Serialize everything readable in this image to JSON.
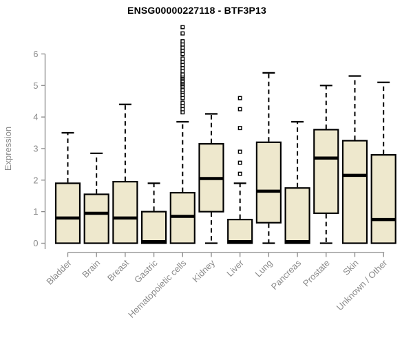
{
  "title": "ENSG00000227118 - BTF3P13",
  "chart_data": {
    "type": "boxplot",
    "title": "ENSG00000227118 - BTF3P13",
    "xlabel": "",
    "ylabel": "Expression",
    "ylim": [
      0,
      6
    ],
    "yticks": [
      0,
      1,
      2,
      3,
      4,
      5,
      6
    ],
    "grid": false,
    "legend": false,
    "categories": [
      "Bladder",
      "Brain",
      "Breast",
      "Gastric",
      "Hematopoietic cells",
      "Kidney",
      "Liver",
      "Lung",
      "Pancreas",
      "Prostate",
      "Skin",
      "Unknown / Other"
    ],
    "boxes": [
      {
        "category": "Bladder",
        "low": 0,
        "q1": 0,
        "median": 0.8,
        "q3": 1.9,
        "high": 3.5,
        "outliers": []
      },
      {
        "category": "Brain",
        "low": 0,
        "q1": 0,
        "median": 0.95,
        "q3": 1.55,
        "high": 2.85,
        "outliers": []
      },
      {
        "category": "Breast",
        "low": 0,
        "q1": 0,
        "median": 0.8,
        "q3": 1.95,
        "high": 4.4,
        "outliers": []
      },
      {
        "category": "Gastric",
        "low": 0,
        "q1": 0,
        "median": 0.05,
        "q3": 1.0,
        "high": 1.9,
        "outliers": []
      },
      {
        "category": "Hematopoietic cells",
        "low": 0,
        "q1": 0,
        "median": 0.85,
        "q3": 1.6,
        "high": 3.85,
        "outliers": [
          4.15,
          4.25,
          4.35,
          4.45,
          4.6,
          4.7,
          4.8,
          4.85,
          4.95,
          5.0,
          5.05,
          5.1,
          5.15,
          5.2,
          5.25,
          5.3,
          5.35,
          5.45,
          5.55,
          5.65,
          5.75,
          5.85,
          6.0,
          6.1,
          6.2,
          6.3,
          6.4,
          6.65,
          6.85
        ]
      },
      {
        "category": "Kidney",
        "low": 0,
        "q1": 1.0,
        "median": 2.05,
        "q3": 3.15,
        "high": 4.1,
        "outliers": []
      },
      {
        "category": "Liver",
        "low": 0,
        "q1": 0,
        "median": 0.05,
        "q3": 0.75,
        "high": 1.9,
        "outliers": [
          2.2,
          2.55,
          2.9,
          3.65,
          4.25,
          4.6
        ]
      },
      {
        "category": "Lung",
        "low": 0,
        "q1": 0.65,
        "median": 1.65,
        "q3": 3.2,
        "high": 5.4,
        "outliers": []
      },
      {
        "category": "Pancreas",
        "low": 0,
        "q1": 0,
        "median": 0.05,
        "q3": 1.75,
        "high": 3.85,
        "outliers": []
      },
      {
        "category": "Prostate",
        "low": 0,
        "q1": 0.95,
        "median": 2.7,
        "q3": 3.6,
        "high": 5.0,
        "outliers": []
      },
      {
        "category": "Skin",
        "low": 0,
        "q1": 0,
        "median": 2.15,
        "q3": 3.25,
        "high": 5.3,
        "outliers": []
      },
      {
        "category": "Unknown / Other",
        "low": 0,
        "q1": 0,
        "median": 0.75,
        "q3": 2.8,
        "high": 5.1,
        "outliers": []
      }
    ],
    "colors": {
      "box_fill": "#EEE8CD",
      "box_stroke": "#000000",
      "whisker": "#000000",
      "median": "#000000",
      "outlier_fill": "#FFFFFF",
      "outlier_stroke": "#000000",
      "axis_line": "#888888",
      "tick_text": "#8A8A8A",
      "title_text": "#000000",
      "background": "#FFFFFF"
    }
  }
}
